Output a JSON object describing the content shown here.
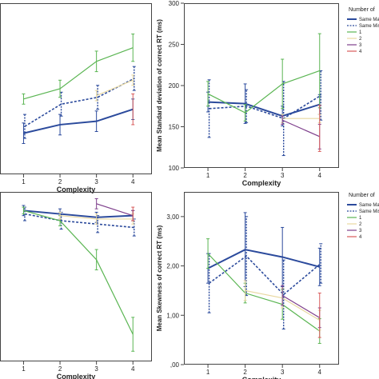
{
  "colors": {
    "same_match": "#2b4a9c",
    "same_mismatch": "#2b4a9c",
    "c1": "#5ab552",
    "c2": "#e8d8a0",
    "c3": "#7e3f8c",
    "c4": "#d85a5a"
  },
  "legend": {
    "title_tr": "Number of",
    "title_br": "Number of",
    "items": [
      "Same Mat",
      "Same Mism",
      "1",
      "2",
      "3",
      "4"
    ]
  },
  "chart_data": [
    {
      "id": "top-left",
      "type": "line",
      "title": "",
      "xlabel": "Complexity",
      "ylabel": "",
      "categories": [
        "1",
        "2",
        "3",
        "4"
      ],
      "ylim": [
        0,
        10
      ],
      "yticks": [],
      "series": [
        {
          "key": "same_match",
          "dash": false,
          "values": [
            2.4,
            2.9,
            3.1,
            3.8
          ],
          "err": [
            0.6,
            0.6,
            0.6,
            0.6
          ]
        },
        {
          "key": "same_mismatch",
          "dash": true,
          "values": [
            2.8,
            4.1,
            4.5,
            5.6
          ],
          "err": [
            0.7,
            0.7,
            0.7,
            0.7
          ]
        },
        {
          "key": "c1",
          "dash": false,
          "values": [
            4.4,
            5.0,
            6.6,
            7.4
          ],
          "err": [
            0.3,
            0.5,
            0.6,
            0.8
          ]
        },
        {
          "key": "c2",
          "dash": false,
          "values": [
            null,
            null,
            4.6,
            5.5
          ],
          "err": [
            0,
            0,
            0.3,
            0.3
          ]
        },
        {
          "key": "c4",
          "dash": false,
          "values": [
            null,
            null,
            null,
            3.8
          ],
          "err": [
            0,
            0,
            0,
            0.9
          ]
        }
      ]
    },
    {
      "id": "top-right",
      "type": "line",
      "title": "",
      "xlabel": "Complexity",
      "ylabel": "Mean Standard deviation of correct RT (ms)",
      "categories": [
        "1",
        "2",
        "3",
        "4"
      ],
      "ylim": [
        100,
        300
      ],
      "yticks": [
        "100",
        "150",
        "200",
        "250",
        "300"
      ],
      "series": [
        {
          "key": "same_match",
          "dash": false,
          "values": [
            180,
            178,
            163,
            177
          ],
          "err": [
            12,
            24,
            12,
            12
          ]
        },
        {
          "key": "same_mismatch",
          "dash": true,
          "values": [
            172,
            175,
            160,
            188
          ],
          "err": [
            35,
            20,
            45,
            30
          ]
        },
        {
          "key": "c1",
          "dash": false,
          "values": [
            190,
            167,
            202,
            218
          ],
          "err": [
            15,
            10,
            30,
            45
          ]
        },
        {
          "key": "c2",
          "dash": false,
          "values": [
            null,
            null,
            160,
            160
          ],
          "err": [
            0,
            0,
            5,
            5
          ]
        },
        {
          "key": "c3",
          "dash": false,
          "values": [
            null,
            null,
            158,
            138
          ],
          "err": [
            0,
            0,
            5,
            15
          ]
        },
        {
          "key": "c4",
          "dash": false,
          "values": [
            null,
            null,
            null,
            148
          ],
          "err": [
            0,
            0,
            0,
            28
          ]
        }
      ]
    },
    {
      "id": "bottom-left",
      "type": "line",
      "title": "",
      "xlabel": "Complexity",
      "ylabel": "",
      "categories": [
        "1",
        "2",
        "3",
        "4"
      ],
      "ylim": [
        0,
        10
      ],
      "yticks": [],
      "series": [
        {
          "key": "same_match",
          "dash": false,
          "values": [
            8.9,
            8.7,
            8.5,
            8.6
          ],
          "err": [
            0.3,
            0.3,
            0.3,
            0.3
          ]
        },
        {
          "key": "same_mismatch",
          "dash": true,
          "values": [
            8.7,
            8.3,
            8.1,
            7.9
          ],
          "err": [
            0.4,
            0.5,
            0.5,
            0.5
          ]
        },
        {
          "key": "c1",
          "dash": false,
          "values": [
            8.9,
            8.3,
            6.0,
            1.6
          ],
          "err": [
            0.2,
            0.3,
            0.6,
            1.0
          ]
        },
        {
          "key": "c2",
          "dash": false,
          "values": [
            null,
            8.6,
            8.4,
            8.4
          ],
          "err": [
            0,
            0.2,
            0.3,
            0.3
          ]
        },
        {
          "key": "c3",
          "dash": false,
          "values": [
            null,
            null,
            9.3,
            8.6
          ],
          "err": [
            0,
            0,
            0.3,
            0.3
          ]
        },
        {
          "key": "c4",
          "dash": false,
          "values": [
            null,
            null,
            null,
            8.7
          ],
          "err": [
            0,
            0,
            0,
            0.4
          ]
        }
      ]
    },
    {
      "id": "bottom-right",
      "type": "line",
      "title": "",
      "xlabel": "Complexity",
      "ylabel": "Mean Skewness of correct RT (ms)",
      "categories": [
        "1",
        "2",
        "3",
        "4"
      ],
      "ylim": [
        0,
        3.5
      ],
      "yticks": [
        ",00",
        "1,00",
        "2,00",
        "3,00"
      ],
      "series": [
        {
          "key": "same_match",
          "dash": false,
          "values": [
            1.95,
            2.33,
            2.18,
            1.98
          ],
          "err": [
            0.3,
            0.75,
            0.6,
            0.38
          ]
        },
        {
          "key": "same_mismatch",
          "dash": true,
          "values": [
            1.65,
            2.2,
            1.42,
            2.05
          ],
          "err": [
            0.6,
            0.8,
            0.7,
            0.4
          ]
        },
        {
          "key": "c1",
          "dash": false,
          "values": [
            2.25,
            1.45,
            1.22,
            0.68
          ],
          "err": [
            0.3,
            0.2,
            0.3,
            0.25
          ]
        },
        {
          "key": "c2",
          "dash": false,
          "values": [
            null,
            1.5,
            1.35,
            0.9
          ],
          "err": [
            0,
            0.2,
            0.2,
            0.2
          ]
        },
        {
          "key": "c3",
          "dash": false,
          "values": [
            null,
            null,
            1.4,
            0.95
          ],
          "err": [
            0,
            0,
            0.2,
            0.2
          ]
        },
        {
          "key": "c4",
          "dash": false,
          "values": [
            null,
            null,
            null,
            1.0
          ],
          "err": [
            0,
            0,
            0,
            0.45
          ]
        }
      ]
    }
  ]
}
